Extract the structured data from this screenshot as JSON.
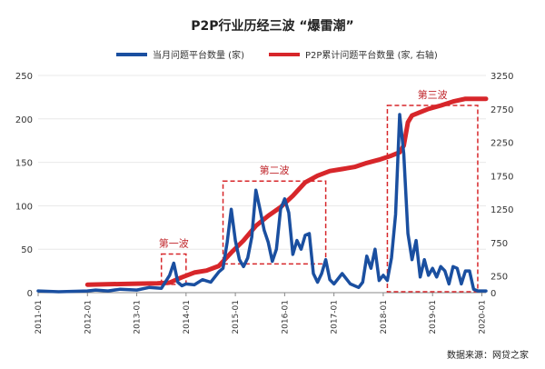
{
  "chart_data": {
    "type": "line",
    "title": "P2P行业历经三波 “爆雷潮”",
    "source": "数据来源：网贷之家",
    "colors": {
      "monthly": "#1a4fa0",
      "cumulative": "#d7262a",
      "annotation": "#d7262a"
    },
    "axes": {
      "x": {
        "type": "date",
        "range": [
          "2011-01",
          "2020-02"
        ],
        "ticks": [
          "2011-01",
          "2012-01",
          "2013-01",
          "2014-01",
          "2015-01",
          "2016-01",
          "2017-01",
          "2018-01",
          "2019-01",
          "2020-01"
        ]
      },
      "y_left": {
        "range": [
          0,
          250
        ],
        "ticks": [
          "0",
          "50",
          "100",
          "150",
          "200",
          "250"
        ]
      },
      "y_right": {
        "range": [
          0,
          3250
        ],
        "ticks": [
          "0",
          "250",
          "750",
          "1250",
          "1750",
          "2250",
          "2750",
          "3250"
        ]
      }
    },
    "legend": {
      "placement": "top",
      "monthly": "当月问题平台数量 (家)",
      "cumulative": "P2P累计问题平台数量 (家, 右轴)"
    },
    "series": [
      {
        "name": "当月问题平台数量 (家)",
        "axis": "left",
        "x": [
          "2011-01",
          "2011-06",
          "2012-01",
          "2012-03",
          "2012-06",
          "2012-09",
          "2013-01",
          "2013-04",
          "2013-07",
          "2013-09",
          "2013-10",
          "2013-11",
          "2013-12",
          "2014-01",
          "2014-03",
          "2014-05",
          "2014-07",
          "2014-09",
          "2014-10",
          "2014-11",
          "2014-12",
          "2015-01",
          "2015-02",
          "2015-03",
          "2015-04",
          "2015-05",
          "2015-06",
          "2015-07",
          "2015-08",
          "2015-09",
          "2015-10",
          "2015-11",
          "2015-12",
          "2016-01",
          "2016-02",
          "2016-03",
          "2016-04",
          "2016-05",
          "2016-06",
          "2016-07",
          "2016-08",
          "2016-09",
          "2016-10",
          "2016-11",
          "2016-12",
          "2017-01",
          "2017-03",
          "2017-05",
          "2017-07",
          "2017-08",
          "2017-09",
          "2017-10",
          "2017-11",
          "2017-12",
          "2018-01",
          "2018-02",
          "2018-03",
          "2018-04",
          "2018-05",
          "2018-06",
          "2018-07",
          "2018-08",
          "2018-09",
          "2018-10",
          "2018-11",
          "2018-12",
          "2019-01",
          "2019-02",
          "2019-03",
          "2019-04",
          "2019-05",
          "2019-06",
          "2019-07",
          "2019-08",
          "2019-09",
          "2019-10",
          "2019-11",
          "2019-12",
          "2020-01",
          "2020-02"
        ],
        "values": [
          2,
          1,
          2,
          3,
          2,
          4,
          3,
          6,
          5,
          20,
          34,
          12,
          8,
          10,
          9,
          15,
          12,
          24,
          28,
          58,
          96,
          60,
          38,
          30,
          40,
          64,
          118,
          96,
          72,
          58,
          36,
          50,
          96,
          108,
          92,
          44,
          60,
          50,
          66,
          68,
          22,
          12,
          22,
          38,
          15,
          10,
          22,
          10,
          6,
          12,
          42,
          28,
          50,
          14,
          20,
          14,
          40,
          90,
          205,
          160,
          68,
          38,
          60,
          18,
          38,
          20,
          28,
          18,
          30,
          25,
          10,
          30,
          28,
          10,
          25,
          25,
          4,
          2,
          2,
          2
        ]
      },
      {
        "name": "P2P累计问题平台数量 (家, 右轴)",
        "axis": "right",
        "x": [
          "2012-01",
          "2013-01",
          "2013-06",
          "2013-09",
          "2013-12",
          "2014-03",
          "2014-06",
          "2014-09",
          "2014-12",
          "2015-03",
          "2015-06",
          "2015-09",
          "2015-12",
          "2016-03",
          "2016-06",
          "2016-09",
          "2016-12",
          "2017-03",
          "2017-06",
          "2017-09",
          "2017-12",
          "2018-03",
          "2018-05",
          "2018-06",
          "2018-07",
          "2018-08",
          "2018-10",
          "2018-12",
          "2019-03",
          "2019-06",
          "2019-09",
          "2019-12",
          "2020-02"
        ],
        "values": [
          120,
          135,
          140,
          150,
          230,
          300,
          330,
          400,
          600,
          780,
          1000,
          1150,
          1280,
          1450,
          1650,
          1750,
          1820,
          1850,
          1880,
          1940,
          1990,
          2050,
          2100,
          2200,
          2550,
          2650,
          2700,
          2750,
          2800,
          2860,
          2900,
          2900,
          2900
        ]
      }
    ],
    "annotations": [
      {
        "label": "第一波",
        "from": "2013-07",
        "to": "2014-01"
      },
      {
        "label": "第二波",
        "from": "2014-10",
        "to": "2016-11"
      },
      {
        "label": "第三波",
        "from": "2018-02",
        "to": "2019-12"
      }
    ]
  }
}
